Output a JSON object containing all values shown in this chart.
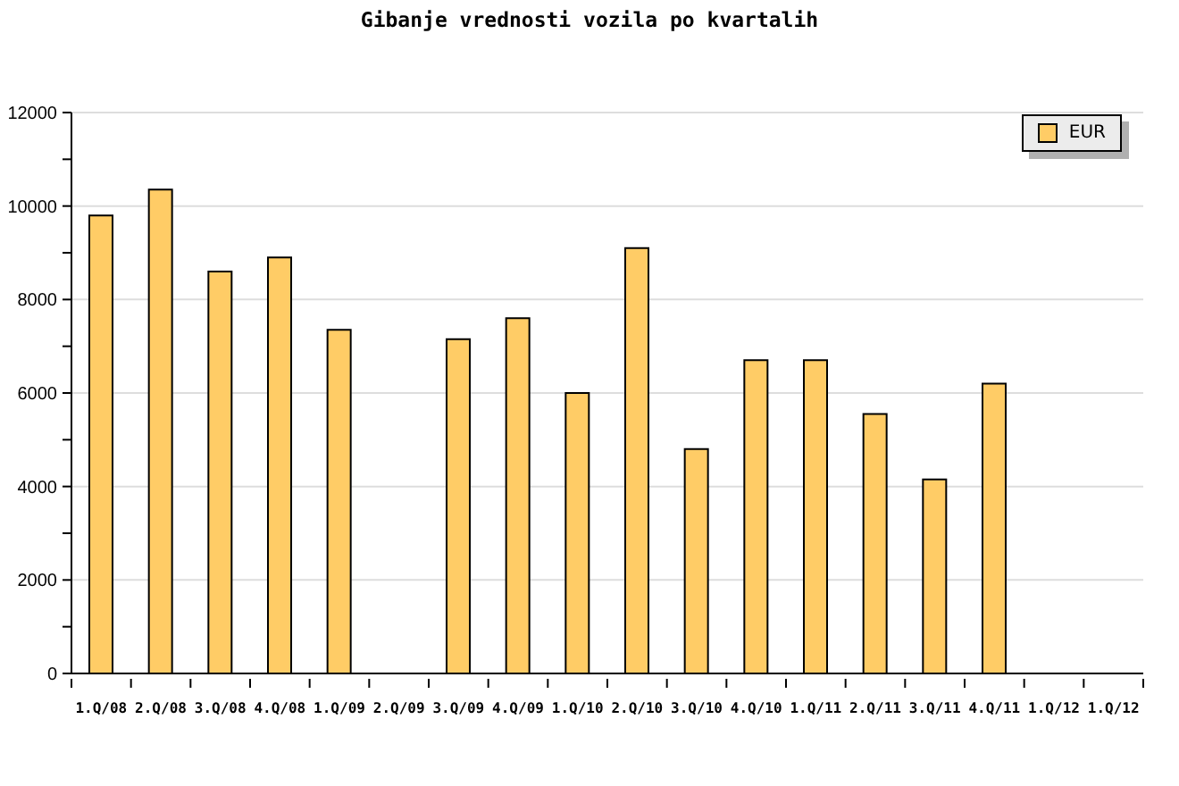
{
  "chart_data": {
    "type": "bar",
    "title": "Gibanje vrednosti vozila po kvartalih",
    "categories": [
      "1.Q/08",
      "2.Q/08",
      "3.Q/08",
      "4.Q/08",
      "1.Q/09",
      "2.Q/09",
      "3.Q/09",
      "4.Q/09",
      "1.Q/10",
      "2.Q/10",
      "3.Q/10",
      "4.Q/10",
      "1.Q/11",
      "2.Q/11",
      "3.Q/11",
      "4.Q/11",
      "1.Q/12",
      "1.Q/12"
    ],
    "series": [
      {
        "name": "EUR",
        "color": "#ffcc66",
        "values": [
          9800,
          10350,
          8600,
          8900,
          7350,
          null,
          7150,
          7600,
          6000,
          9100,
          4800,
          6700,
          6700,
          5550,
          4150,
          6200,
          null,
          null
        ]
      }
    ],
    "ylim": [
      0,
      12000
    ],
    "yticks": [
      0,
      {
        "value": 1000,
        "label": null
      },
      2000,
      {
        "value": 3000,
        "label": null
      },
      4000,
      {
        "value": 5000,
        "label": null
      },
      6000,
      {
        "value": 7000,
        "label": null
      },
      8000,
      {
        "value": 9000,
        "label": null
      },
      10000,
      {
        "value": 11000,
        "label": null
      },
      12000
    ],
    "grid": "y",
    "legend": "top right"
  }
}
